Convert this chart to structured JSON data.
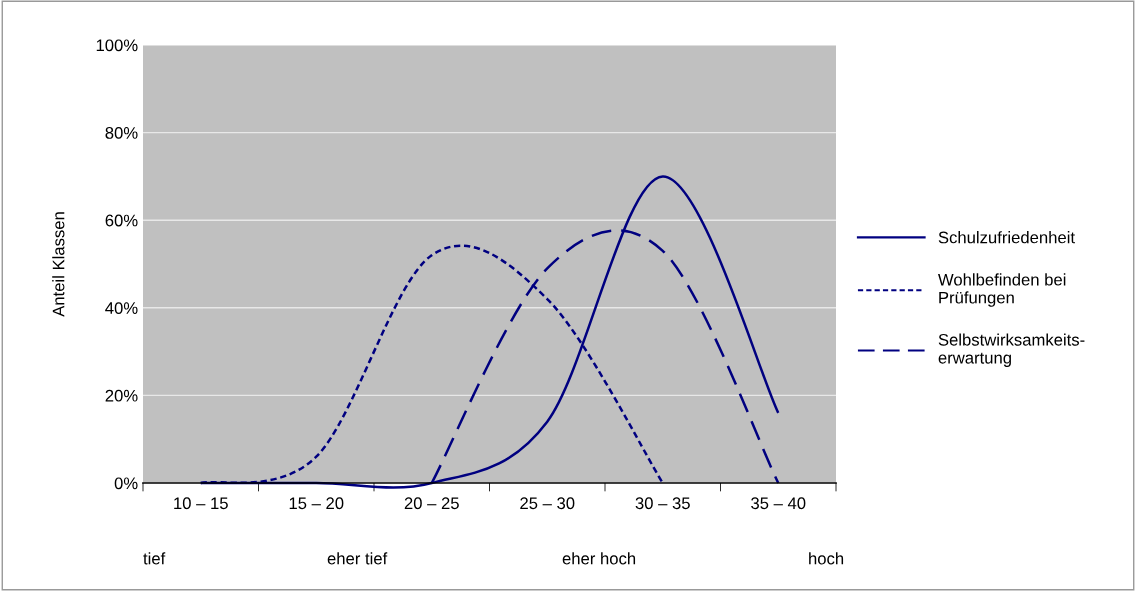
{
  "chart_data": {
    "type": "line",
    "ylabel": "Anteil Klassen",
    "categories": [
      "10 – 15",
      "15 – 20",
      "20 – 25",
      "25 – 30",
      "30 – 35",
      "35 – 40"
    ],
    "series": [
      {
        "name": "Schulzufriedenheit",
        "color": "#000080",
        "line_style": "solid",
        "values": [
          0,
          0,
          0,
          14,
          70,
          16
        ]
      },
      {
        "name": "Wohlbefinden bei Prüfungen",
        "color": "#000080",
        "line_style": "dotted",
        "values": [
          0,
          6,
          52,
          42,
          0,
          null
        ]
      },
      {
        "name": "Selbstwirksamkeits-erwartung",
        "color": "#000080",
        "line_style": "dashed",
        "values": [
          null,
          null,
          0,
          49,
          53,
          0
        ]
      }
    ],
    "ylim": [
      0,
      100
    ],
    "yticks": [
      {
        "value": 0,
        "label": "0%"
      },
      {
        "value": 20,
        "label": "20%"
      },
      {
        "value": 40,
        "label": "40%"
      },
      {
        "value": 60,
        "label": "60%"
      },
      {
        "value": 80,
        "label": "80%"
      },
      {
        "value": 100,
        "label": "100%"
      }
    ],
    "grid": "y",
    "legend": "right",
    "marker": "none",
    "annotations": [
      "tief",
      "eher tief",
      "eher hoch",
      "hoch"
    ]
  }
}
